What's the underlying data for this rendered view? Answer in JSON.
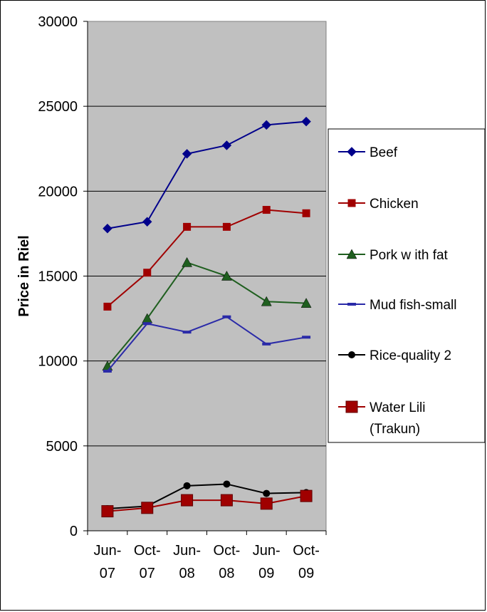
{
  "chart_data": {
    "type": "line",
    "title": "",
    "xlabel": "",
    "ylabel": "Price in Riel",
    "ylim": [
      0,
      30000
    ],
    "yticks": [
      0,
      5000,
      10000,
      15000,
      20000,
      25000,
      30000
    ],
    "grid": true,
    "legend_position": "right",
    "categories": [
      [
        "Jun-",
        "07"
      ],
      [
        "Oct-",
        "07"
      ],
      [
        "Jun-",
        "08"
      ],
      [
        "Oct-",
        "08"
      ],
      [
        "Jun-",
        "09"
      ],
      [
        "Oct-",
        "09"
      ]
    ],
    "series": [
      {
        "name": "Beef",
        "color": "#00008B",
        "marker": "diamond",
        "values": [
          17800,
          18200,
          22200,
          22700,
          23900,
          24100
        ]
      },
      {
        "name": "Chicken",
        "color": "#A00000",
        "marker": "square",
        "values": [
          13200,
          15200,
          17900,
          17900,
          18900,
          18700
        ]
      },
      {
        "name": "Pork w ith fat",
        "color": "#1F5F1F",
        "marker": "triangle",
        "values": [
          9700,
          12500,
          15800,
          15000,
          13500,
          13400
        ]
      },
      {
        "name": "Mud fish-small",
        "color": "#2A2AA8",
        "marker": "dash",
        "values": [
          9400,
          12200,
          11700,
          12600,
          11000,
          11400
        ]
      },
      {
        "name": "Rice-quality 2",
        "color": "#000000",
        "marker": "circle",
        "values": [
          1300,
          1450,
          2650,
          2750,
          2200,
          2250
        ]
      },
      {
        "name": [
          "Water Lili",
          "(Trakun)"
        ],
        "color": "#A00000",
        "marker": "bigsquare",
        "values": [
          1150,
          1350,
          1800,
          1800,
          1600,
          2050
        ]
      }
    ],
    "plot_bg": "#C0C0C0"
  }
}
